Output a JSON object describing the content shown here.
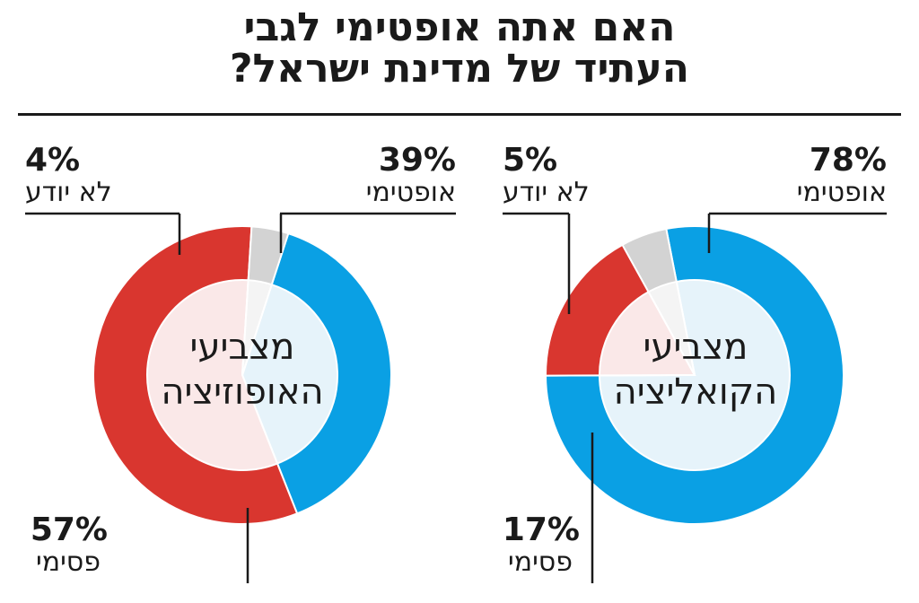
{
  "title": {
    "line1": "האם אתה אופטימי לגבי",
    "line2": "העתיד של מדינת ישראל?"
  },
  "colors": {
    "optimistic": "#0aa0e4",
    "pessimistic": "#d9362f",
    "dont_know": "#d3d3d3",
    "optimistic_inner": "#e6f3fa",
    "pessimistic_inner": "#fae8e8",
    "dont_know_inner": "#f4f4f4"
  },
  "chart_data": [
    {
      "type": "pie",
      "center_label": {
        "line1": "מצביעי",
        "line2": "האופוזיציה"
      },
      "slices": [
        {
          "key": "optimistic",
          "label": "אופטימי",
          "pct_text": "39%",
          "value": 39
        },
        {
          "key": "pessimistic",
          "label": "פסימי",
          "pct_text": "57%",
          "value": 57
        },
        {
          "key": "dont_know",
          "label": "לא יודע",
          "pct_text": "4%",
          "value": 4
        }
      ]
    },
    {
      "type": "pie",
      "center_label": {
        "line1": "מצביעי",
        "line2": "הקואליציה"
      },
      "slices": [
        {
          "key": "optimistic",
          "label": "אופטימי",
          "pct_text": "78%",
          "value": 78
        },
        {
          "key": "pessimistic",
          "label": "פסימי",
          "pct_text": "17%",
          "value": 17
        },
        {
          "key": "dont_know",
          "label": "לא יודע",
          "pct_text": "5%",
          "value": 5
        }
      ]
    }
  ]
}
